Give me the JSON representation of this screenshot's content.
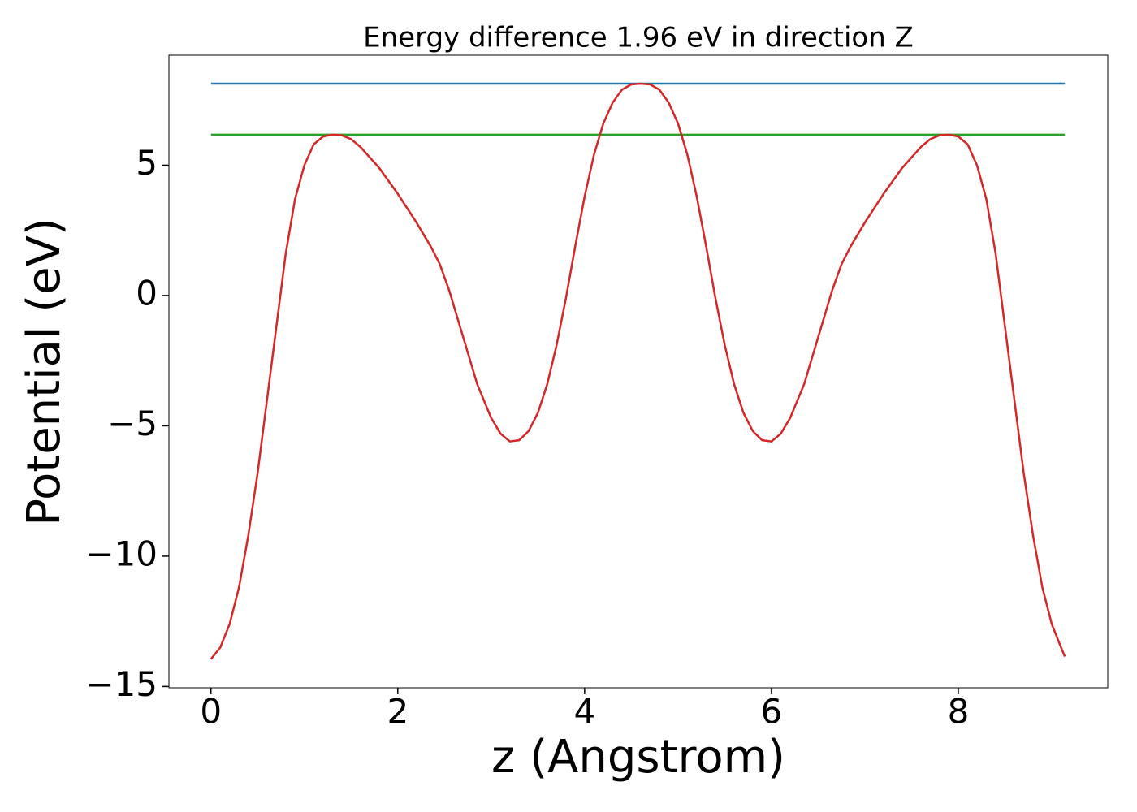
{
  "chart_data": {
    "type": "line",
    "title": "Energy difference 1.96 eV in direction Z",
    "xlabel": "z (Angstrom)",
    "ylabel": "Potential (eV)",
    "xlim": [
      -0.45,
      9.6
    ],
    "ylim": [
      -15.05,
      9.22
    ],
    "xticks": [
      0,
      2,
      4,
      6,
      8
    ],
    "yticks": [
      {
        "value": -15,
        "label": "−15"
      },
      {
        "value": -10,
        "label": "−10"
      },
      {
        "value": -5,
        "label": "−5"
      },
      0,
      5
    ],
    "grid": false,
    "series": [
      {
        "color": "#1f77b4",
        "x": [
          0,
          9.14
        ],
        "values": [
          8.13,
          8.13
        ]
      },
      {
        "color": "#2ca02c",
        "x": [
          0,
          9.14
        ],
        "values": [
          6.17,
          6.17
        ]
      },
      {
        "color": "#d62728",
        "x": [
          0,
          0.1,
          0.2,
          0.3,
          0.4,
          0.5,
          0.6,
          0.7,
          0.8,
          0.9,
          1.0,
          1.1,
          1.2,
          1.3,
          1.4,
          1.5,
          1.6,
          1.8,
          2.0,
          2.2,
          2.35,
          2.45,
          2.55,
          2.7,
          2.85,
          3.0,
          3.1,
          3.2,
          3.3,
          3.4,
          3.5,
          3.6,
          3.7,
          3.8,
          3.9,
          4.0,
          4.1,
          4.2,
          4.3,
          4.4,
          4.5,
          4.6,
          4.7,
          4.8,
          4.9,
          5.0,
          5.1,
          5.2,
          5.3,
          5.4,
          5.5,
          5.6,
          5.7,
          5.8,
          5.9,
          6.0,
          6.1,
          6.2,
          6.35,
          6.5,
          6.65,
          6.75,
          6.85,
          7.0,
          7.2,
          7.4,
          7.6,
          7.7,
          7.8,
          7.9,
          8.0,
          8.1,
          8.2,
          8.3,
          8.4,
          8.5,
          8.6,
          8.7,
          8.8,
          8.9,
          9.0,
          9.1,
          9.14
        ],
        "values": [
          -13.95,
          -13.5,
          -12.6,
          -11.2,
          -9.2,
          -6.8,
          -4.0,
          -1.2,
          1.6,
          3.7,
          5.0,
          5.8,
          6.1,
          6.17,
          6.15,
          6.0,
          5.7,
          4.9,
          3.9,
          2.8,
          1.9,
          1.2,
          0.2,
          -1.6,
          -3.4,
          -4.7,
          -5.3,
          -5.6,
          -5.55,
          -5.2,
          -4.5,
          -3.4,
          -1.9,
          -0.1,
          1.9,
          3.8,
          5.4,
          6.6,
          7.4,
          7.9,
          8.1,
          8.13,
          8.1,
          7.9,
          7.4,
          6.6,
          5.4,
          3.8,
          1.9,
          -0.1,
          -1.9,
          -3.4,
          -4.5,
          -5.2,
          -5.55,
          -5.6,
          -5.3,
          -4.7,
          -3.4,
          -1.6,
          0.2,
          1.2,
          1.9,
          2.8,
          3.9,
          4.9,
          5.7,
          6.0,
          6.15,
          6.17,
          6.1,
          5.8,
          5.0,
          3.7,
          1.6,
          -1.2,
          -4.0,
          -6.8,
          -9.2,
          -11.2,
          -12.6,
          -13.5,
          -13.85
        ]
      }
    ]
  }
}
